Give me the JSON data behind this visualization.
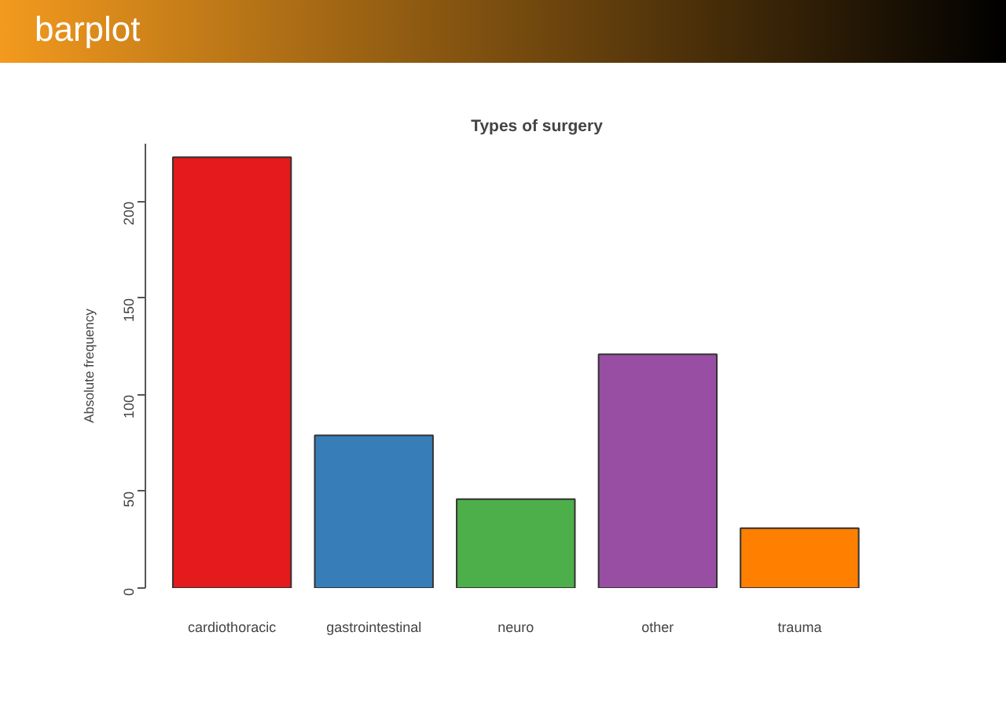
{
  "chart_data": {
    "type": "bar",
    "title": "Types of surgery",
    "ylabel": "Absolute frequency",
    "annotations": [
      "barplot"
    ],
    "categories": [
      "cardiothoracic",
      "gastrointestinal",
      "neuro",
      "other",
      "trauma"
    ],
    "values": [
      223,
      79,
      46,
      121,
      31
    ],
    "colors": [
      "#e41a1c",
      "#377eb8",
      "#4daf4a",
      "#984ea3",
      "#ff7f00"
    ],
    "ylim": [
      0,
      230
    ],
    "yticks": [
      0,
      50,
      100,
      150,
      200
    ]
  }
}
